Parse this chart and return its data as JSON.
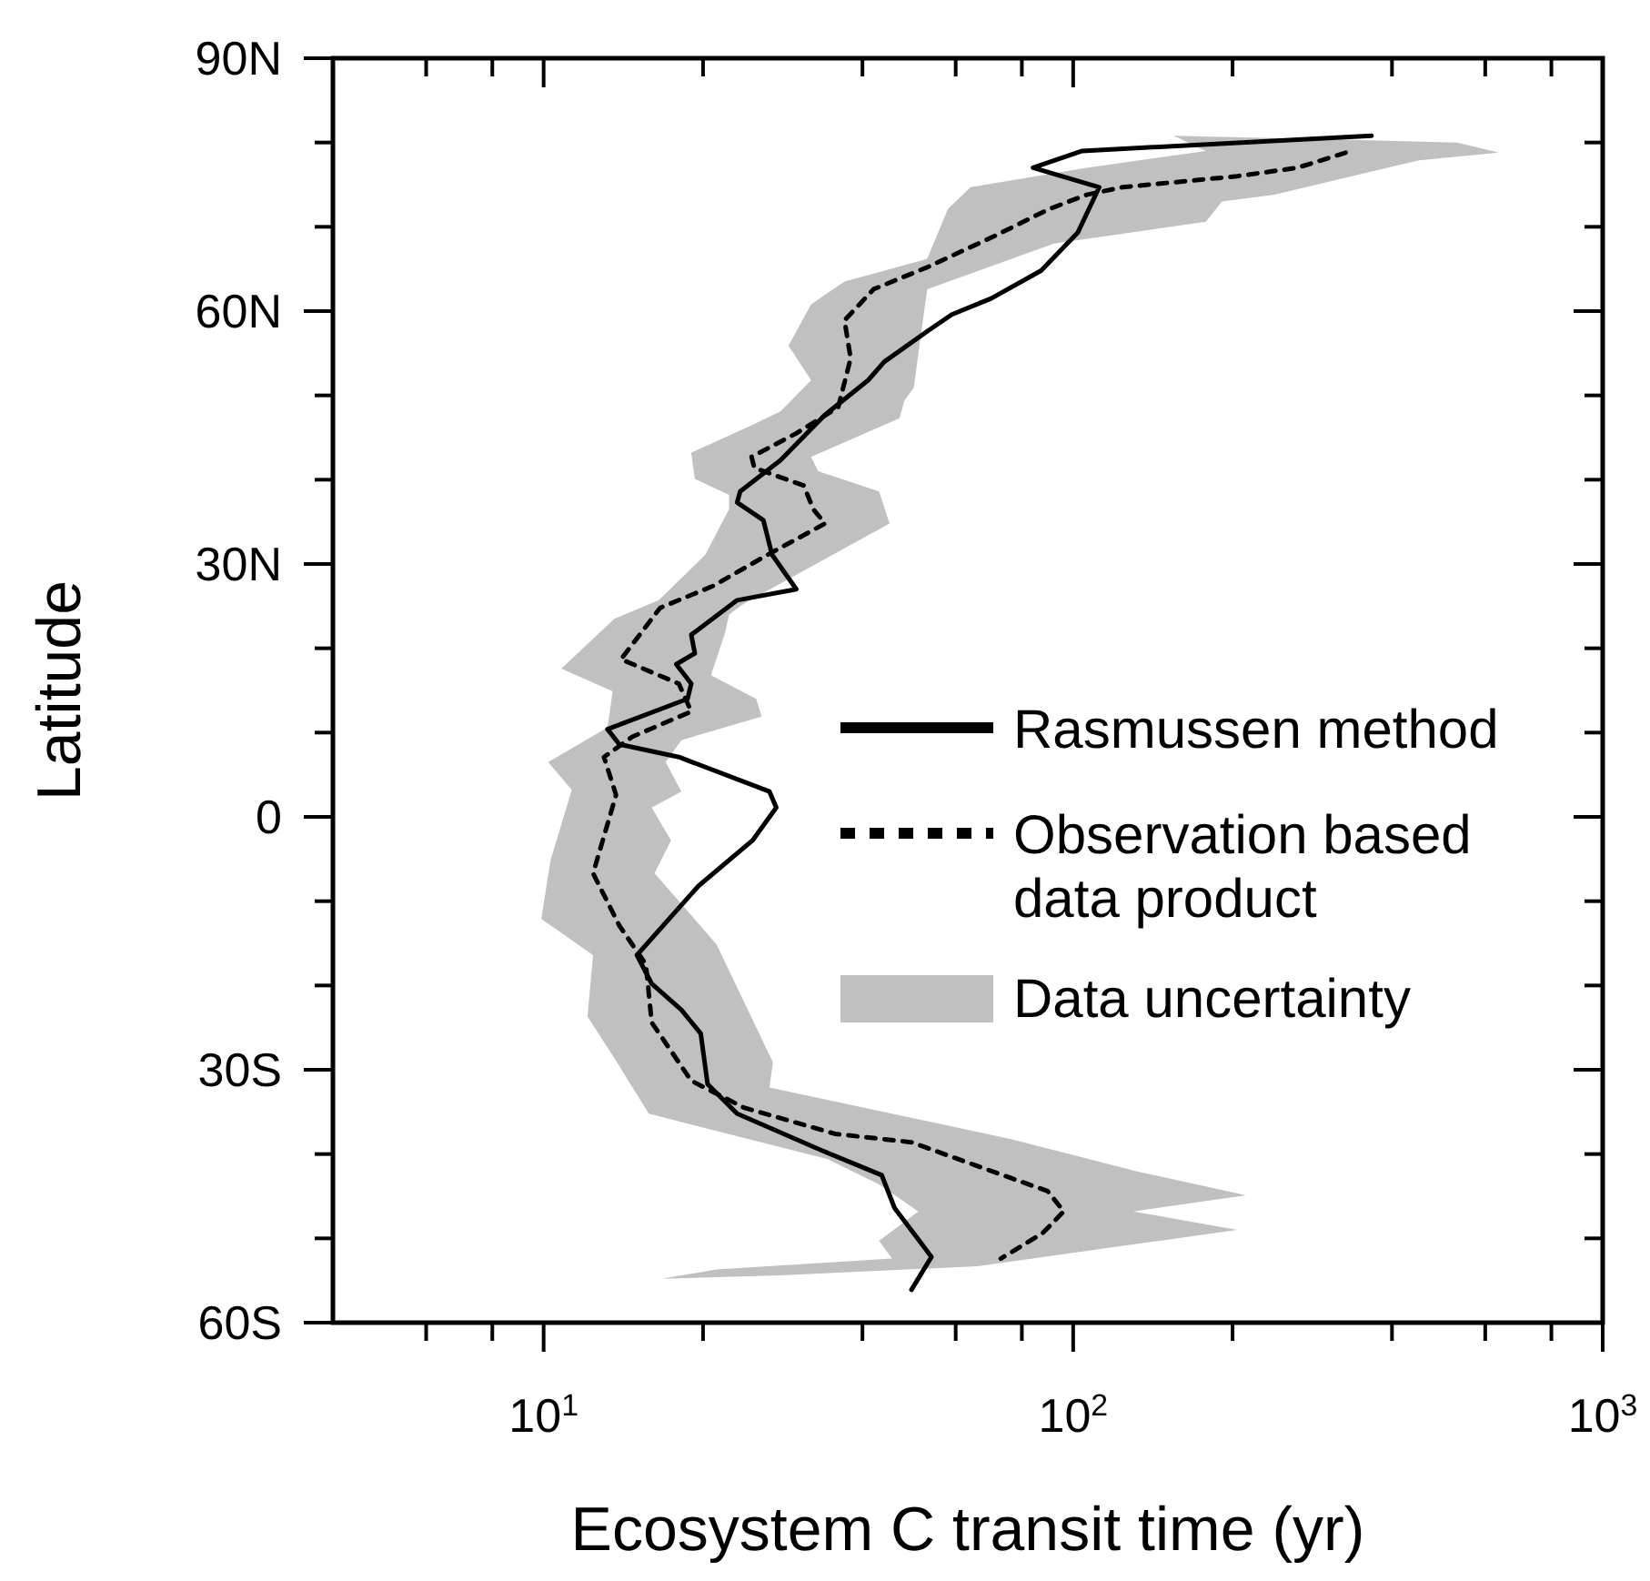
{
  "chart_data": {
    "type": "line",
    "xlabel": "Ecosystem C transit time (yr)",
    "ylabel": "Latitude",
    "log": "x",
    "legend": "right",
    "xlim": [
      4,
      1000
    ],
    "ylim": [
      -60,
      90
    ],
    "xticks": [
      {
        "value": 6,
        "label": null
      },
      {
        "value": 8,
        "label": null
      },
      {
        "value": 10,
        "label": "10$^{1}$"
      },
      {
        "value": 20,
        "label": null
      },
      {
        "value": 40,
        "label": null
      },
      {
        "value": 60,
        "label": null
      },
      {
        "value": 80,
        "label": null
      },
      {
        "value": 100,
        "label": "10$^{2}$"
      },
      {
        "value": 200,
        "label": null
      },
      {
        "value": 400,
        "label": null
      },
      {
        "value": 600,
        "label": null
      },
      {
        "value": 800,
        "label": null
      },
      {
        "value": 1000,
        "label": "10$^{3}$"
      }
    ],
    "yticks": [
      {
        "value": -60,
        "label": "60S"
      },
      {
        "value": -50,
        "label": null
      },
      {
        "value": -40,
        "label": null
      },
      {
        "value": -30,
        "label": "30S"
      },
      {
        "value": -20,
        "label": null
      },
      {
        "value": -10,
        "label": null
      },
      {
        "value": 0,
        "label": "0"
      },
      {
        "value": 10,
        "label": null
      },
      {
        "value": 20,
        "label": null
      },
      {
        "value": 30,
        "label": "30N"
      },
      {
        "value": 40,
        "label": null
      },
      {
        "value": 50,
        "label": null
      },
      {
        "value": 60,
        "label": "60N"
      },
      {
        "value": 70,
        "label": null
      },
      {
        "value": 80,
        "label": null
      },
      {
        "value": 90,
        "label": "90N"
      }
    ],
    "series": [
      {
        "name": "Data uncertainty",
        "type": "area",
        "color": "#c0c0c0",
        "x": [
          155,
          178,
          106,
          64,
          58,
          53,
          37,
          32,
          29,
          32,
          28,
          24.6,
          19,
          19.3,
          22.4,
          22.4,
          20.2,
          16.5,
          13.6,
          10.8,
          13.5,
          13.2,
          10.2,
          11.3,
          10.3,
          9.9,
          12.4,
          12.1,
          13.5,
          15.8,
          20.7,
          34.4,
          43,
          51,
          43,
          45.5,
          21.2,
          16.7,
          28,
          66,
          204,
          130,
          212,
          133,
          76,
          26.7,
          27.1,
          21.2,
          16.2,
          17.4,
          16,
          18.2,
          17,
          18.2,
          25.8,
          25.2,
          20.7,
          22,
          22.4,
          23.9,
          45,
          43,
          33,
          32,
          47,
          48,
          50,
          53,
          92,
          178,
          191,
          240,
          450,
          637,
          531
        ],
        "values": [
          80.8,
          79,
          77,
          74.7,
          72.1,
          66.2,
          63.5,
          60.8,
          55.9,
          51.8,
          48.1,
          46.4,
          43.2,
          40.1,
          38.2,
          36.5,
          31.1,
          25.7,
          23.5,
          17.6,
          14.9,
          10.6,
          6.5,
          3.2,
          -5.2,
          -12.1,
          -16.4,
          -23.7,
          -28.3,
          -35.2,
          -37.1,
          -40.6,
          -43.6,
          -46.8,
          -50.3,
          -52.4,
          -53.7,
          -54.8,
          -54.4,
          -53.3,
          -49,
          -46.8,
          -44.9,
          -42.1,
          -38.2,
          -32.1,
          -29.1,
          -15.1,
          -6.7,
          -2.8,
          1.1,
          3,
          6.5,
          9.1,
          11.9,
          14,
          16.8,
          21.8,
          24,
          25.3,
          34.8,
          38.6,
          41,
          42.7,
          47.3,
          49.4,
          50.9,
          62.6,
          68,
          70.6,
          73,
          73.8,
          77.9,
          78.8,
          80
        ]
      },
      {
        "name": "Rasmussen method",
        "color": "#000000",
        "line_style": "solid",
        "x": [
          366,
          104,
          84,
          112,
          102,
          87,
          70,
          59,
          53,
          44,
          41,
          34,
          28,
          23.5,
          23.2,
          26,
          27,
          30,
          23.2,
          19,
          19.3,
          17.8,
          19,
          18.7,
          13.2,
          13.9,
          18,
          26.7,
          27.5,
          24.8,
          19.6,
          15,
          16,
          18.2,
          19.8,
          20.4,
          23.2,
          33.3,
          43.5,
          46,
          54,
          49.5
        ],
        "values": [
          80.8,
          79,
          77,
          74.7,
          69.3,
          64.8,
          61.5,
          59.6,
          57.6,
          54,
          51.8,
          47.7,
          42.3,
          38.6,
          37.3,
          35.2,
          31.1,
          27,
          25.7,
          21.6,
          19.4,
          18.1,
          15.8,
          14,
          10.4,
          8.6,
          7.1,
          3,
          1.1,
          -2.8,
          -8.2,
          -16.4,
          -19.8,
          -22.9,
          -25.7,
          -31.7,
          -35.2,
          -39.5,
          -42.5,
          -46.4,
          -52.2,
          -56.1
        ]
      },
      {
        "name": "Observation based\ndata product",
        "color": "#000000",
        "line_style": "dotted",
        "x": [
          327,
          265,
          204,
          124,
          106,
          90,
          71,
          53,
          42,
          37,
          38,
          36,
          30,
          24.7,
          25,
          31,
          32.3,
          34,
          26.5,
          20.9,
          16.6,
          14,
          18,
          19,
          14.7,
          13,
          13.7,
          12.4,
          13.9,
          15.6,
          16,
          19,
          23.9,
          35.5,
          49.5,
          65.8,
          89.5,
          96,
          87.5,
          73
        ],
        "values": [
          78.8,
          77,
          76,
          74.7,
          73.8,
          72.1,
          68.9,
          65.2,
          62.6,
          58.9,
          54.4,
          48.6,
          45.5,
          42.7,
          41.4,
          39.3,
          36.5,
          34.8,
          31.1,
          27.4,
          24.8,
          18.7,
          15.8,
          12.5,
          9.5,
          7.1,
          2.6,
          -6.7,
          -12.9,
          -17.5,
          -24.4,
          -31.3,
          -34.5,
          -37.6,
          -38.6,
          -41.4,
          -44.4,
          -46.8,
          -49.4,
          -52.4
        ]
      }
    ]
  }
}
